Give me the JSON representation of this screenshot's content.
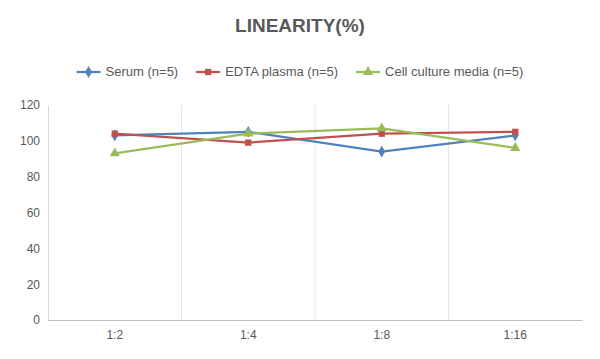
{
  "chart_data": {
    "type": "line",
    "title": "LINEARITY(%)",
    "categories": [
      "1:2",
      "1:4",
      "1:8",
      "1:16"
    ],
    "series": [
      {
        "name": "Serum (n=5)",
        "color": "#4f81bd",
        "marker": "diamond",
        "values": [
          103,
          105,
          94,
          103
        ]
      },
      {
        "name": "EDTA plasma (n=5)",
        "color": "#c0504d",
        "marker": "square",
        "values": [
          104,
          99,
          104,
          105
        ]
      },
      {
        "name": "Cell culture media (n=5)",
        "color": "#9bbb59",
        "marker": "triangle",
        "values": [
          93,
          104,
          107,
          96
        ]
      }
    ],
    "ylim": [
      0,
      120
    ],
    "yticks": [
      0,
      20,
      40,
      60,
      80,
      100,
      120
    ],
    "grid": false,
    "legend": "top"
  }
}
